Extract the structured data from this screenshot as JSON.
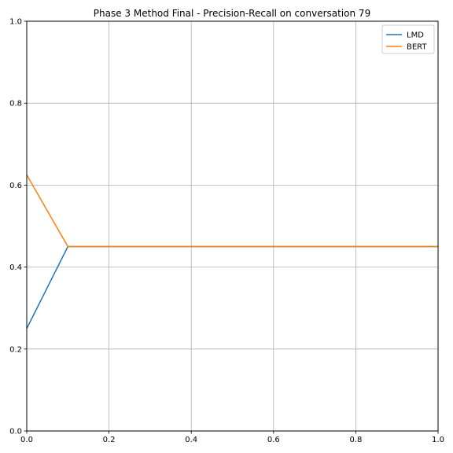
{
  "chart_data": {
    "type": "line",
    "title": "Phase 3 Method Final - Precision-Recall on conversation 79",
    "xlabel": "",
    "ylabel": "",
    "xlim": [
      0,
      1
    ],
    "ylim": [
      0,
      1
    ],
    "xticks": [
      0.0,
      0.2,
      0.4,
      0.6,
      0.8,
      1.0
    ],
    "yticks": [
      0.0,
      0.2,
      0.4,
      0.6,
      0.8,
      1.0
    ],
    "xtick_labels": [
      "0.0",
      "0.2",
      "0.4",
      "0.6",
      "0.8",
      "1.0"
    ],
    "ytick_labels": [
      "0.0",
      "0.2",
      "0.4",
      "0.6",
      "0.8",
      "1.0"
    ],
    "grid": true,
    "legend_position": "top-right",
    "series": [
      {
        "name": "LMD",
        "color": "#1f77b4",
        "x": [
          0.0,
          0.1,
          1.0
        ],
        "y": [
          0.25,
          0.45,
          0.45
        ]
      },
      {
        "name": "BERT",
        "color": "#ff7f0e",
        "x": [
          0.0,
          0.1,
          1.0
        ],
        "y": [
          0.625,
          0.45,
          0.45
        ]
      }
    ]
  }
}
